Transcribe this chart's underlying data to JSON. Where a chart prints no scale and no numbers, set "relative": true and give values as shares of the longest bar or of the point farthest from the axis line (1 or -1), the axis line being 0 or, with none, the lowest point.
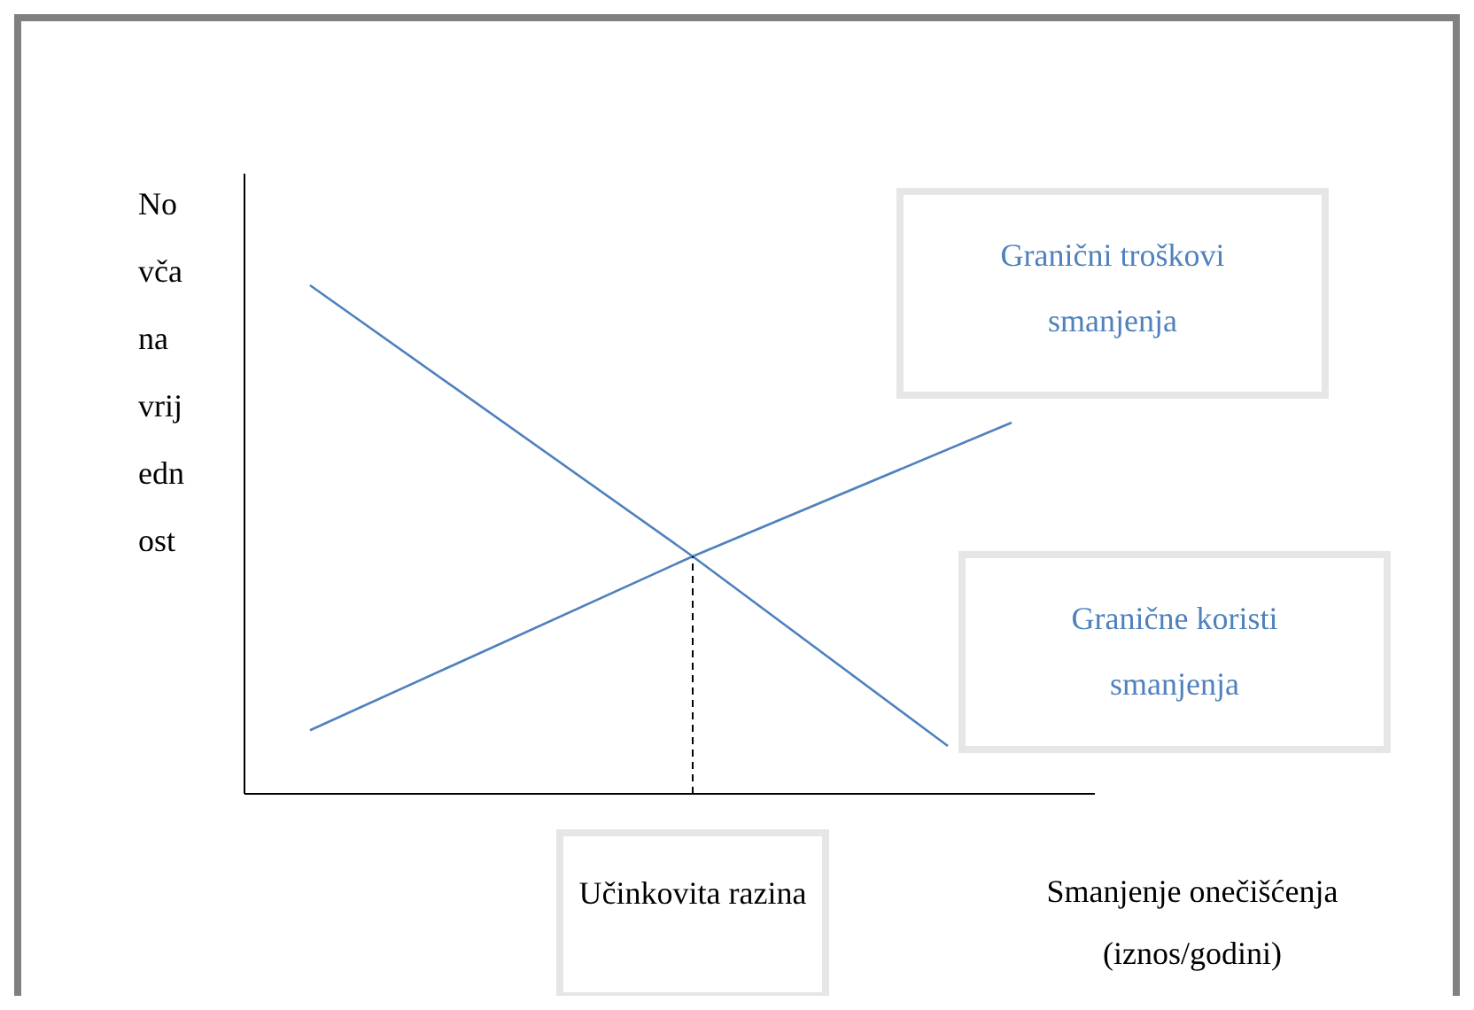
{
  "chart_data": {
    "type": "line",
    "relative": true,
    "ylabel": "Novčana vrijednost",
    "xlabel": "Smanjenje onečišćenja (iznos/godini)",
    "categories": [
      null,
      null,
      null,
      null,
      null,
      null,
      null,
      null,
      null,
      null,
      null,
      null
    ],
    "series": [
      {
        "name": "Granični troškovi smanjenja",
        "color": "#4f81bd",
        "values": [
          0.125,
          null,
          null,
          null,
          null,
          null,
          0.467,
          null,
          null,
          null,
          null,
          0.73
        ]
      },
      {
        "name": "Granične koristi smanjenja",
        "color": "#4f81bd",
        "values": [
          1,
          null,
          null,
          null,
          null,
          null,
          0.467,
          null,
          null,
          null,
          0.094,
          null
        ]
      }
    ],
    "annotations": [
      "Učinkovita razina"
    ],
    "legend": false,
    "line_style": "solid",
    "marker": "none"
  }
}
